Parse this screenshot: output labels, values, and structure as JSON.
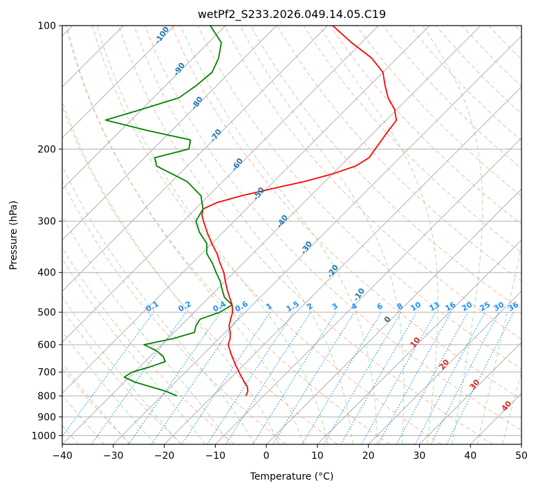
{
  "chart_data": {
    "type": "skew-t",
    "title": "wetPf2_S233.2026.049.14.05.C19",
    "xlabel": "Temperature (°C)",
    "ylabel": "Pressure (hPa)",
    "xlim": [
      -40,
      50
    ],
    "ylim": [
      1050,
      100
    ],
    "y_scale": "log",
    "grid": true,
    "x_ticks": [
      -40,
      -30,
      -20,
      -10,
      0,
      10,
      20,
      30,
      40,
      50
    ],
    "x_tick_labels": [
      "−40",
      "−30",
      "−20",
      "−10",
      "0",
      "10",
      "20",
      "30",
      "40",
      "50"
    ],
    "y_ticks": [
      100,
      200,
      300,
      400,
      500,
      600,
      700,
      800,
      900,
      1000
    ],
    "y_tick_labels": [
      "100",
      "200",
      "300",
      "400",
      "500",
      "600",
      "700",
      "800",
      "900",
      "1000"
    ],
    "dry_adiabat_labels": [
      "-100",
      "-90",
      "-80",
      "-70",
      "-60",
      "-50",
      "-40",
      "-30",
      "-20",
      "-10"
    ],
    "moist_adiabat_labels": [
      "0",
      "10",
      "20",
      "30",
      "40"
    ],
    "mixing_ratio_labels": [
      "0.1",
      "0.2",
      "0.4",
      "0.6",
      "1",
      "1.5",
      "2",
      "3",
      "4",
      "6",
      "8",
      "10",
      "13",
      "16",
      "20",
      "25",
      "30",
      "36"
    ],
    "colors": {
      "temperature": "#ff0000",
      "dewpoint": "#008000",
      "isotherm": "#b0b0b0",
      "dry_adiabat": "#ff9f80",
      "moist_adiabat": "#7fbf7f",
      "mixing_ratio": "#1e90ff"
    },
    "series": [
      {
        "kind": "temperature",
        "p": [
          800,
          780,
          760,
          740,
          720,
          700,
          680,
          660,
          640,
          620,
          600,
          580,
          560,
          540,
          520,
          500,
          480,
          460,
          440,
          420,
          400,
          380,
          360,
          340,
          320,
          300,
          290,
          280,
          270,
          260,
          250,
          240,
          230,
          220,
          210,
          200,
          190,
          180,
          170,
          160,
          150,
          140,
          130,
          120,
          110,
          100
        ],
        "t": [
          -13.5,
          -14.0,
          -15.0,
          -16.5,
          -18.0,
          -19.5,
          -21.0,
          -22.5,
          -24.0,
          -25.5,
          -27.0,
          -27.8,
          -29.0,
          -30.5,
          -31.5,
          -32.5,
          -34.0,
          -36.0,
          -38.0,
          -40.0,
          -42.0,
          -44.5,
          -47.0,
          -50.0,
          -53.0,
          -56.0,
          -57.5,
          -58.5,
          -57.0,
          -53.5,
          -49.0,
          -44.0,
          -40.0,
          -37.0,
          -36.0,
          -36.5,
          -37.0,
          -37.5,
          -38.0,
          -40.5,
          -44.0,
          -47.0,
          -50.0,
          -55.0,
          -62.0,
          -69.0
        ]
      },
      {
        "kind": "dewpoint",
        "p": [
          800,
          780,
          760,
          740,
          720,
          700,
          680,
          660,
          640,
          620,
          600,
          580,
          560,
          540,
          520,
          500,
          480,
          460,
          440,
          420,
          400,
          380,
          360,
          340,
          320,
          300,
          280,
          260,
          240,
          220,
          210,
          200,
          190,
          180,
          170,
          160,
          150,
          140,
          130,
          120,
          110,
          100
        ],
        "td": [
          -27.0,
          -30.0,
          -34.0,
          -38.0,
          -41.0,
          -40.5,
          -38.0,
          -36.0,
          -37.5,
          -40.0,
          -43.5,
          -39.0,
          -36.0,
          -37.0,
          -37.5,
          -35.0,
          -34.0,
          -37.0,
          -39.0,
          -41.0,
          -43.5,
          -46.0,
          -49.0,
          -51.0,
          -54.5,
          -57.5,
          -58.5,
          -61.5,
          -67.0,
          -76.0,
          -78.0,
          -73.0,
          -74.5,
          -85.0,
          -95.0,
          -90.0,
          -85.0,
          -84.0,
          -83.5,
          -85.0,
          -87.5,
          -93.0
        ]
      }
    ]
  }
}
